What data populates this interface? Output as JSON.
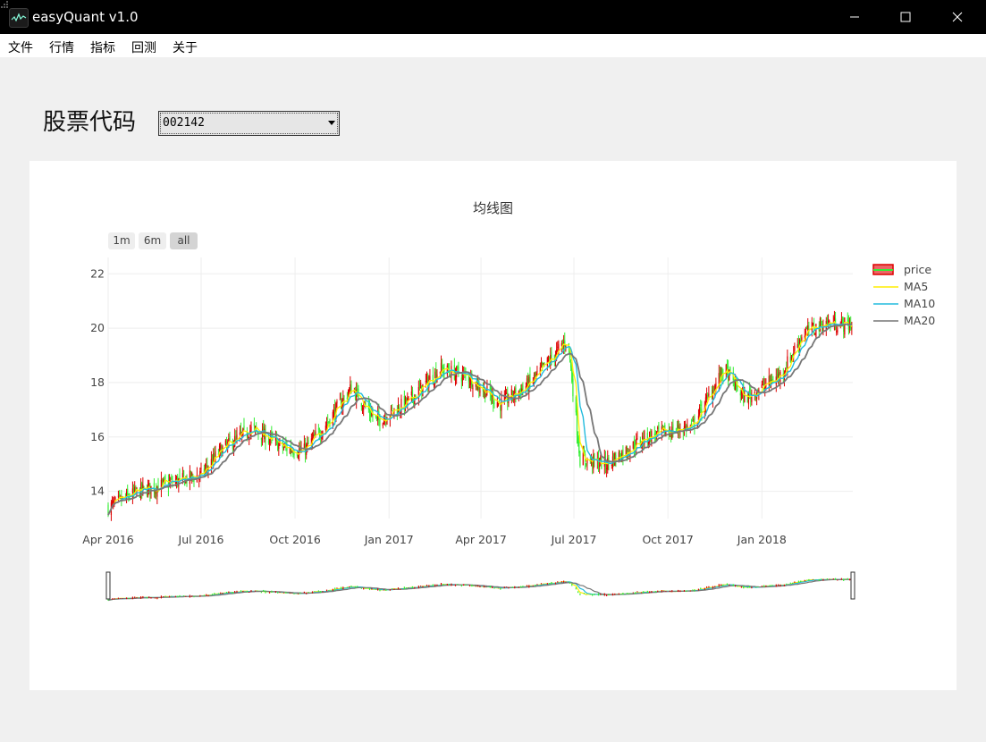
{
  "window": {
    "title": "easyQuant v1.0"
  },
  "menu": {
    "items": [
      "文件",
      "行情",
      "指标",
      "回测",
      "关于"
    ]
  },
  "stock": {
    "label": "股票代码",
    "selected": "002142"
  },
  "range_buttons": [
    "1m",
    "6m",
    "all"
  ],
  "colors": {
    "up": "#dd0000",
    "down": "#33ee33",
    "ma5": "#ffee00",
    "ma10": "#22bbdd",
    "ma20": "#777777"
  },
  "chart_data": {
    "type": "candlestick",
    "title": "均线图",
    "x_ticks": [
      "Apr 2016",
      "Jul 2016",
      "Oct 2016",
      "Jan 2017",
      "Apr 2017",
      "Jul 2017",
      "Oct 2017",
      "Jan 2018"
    ],
    "y_ticks": [
      "14",
      "16",
      "18",
      "20",
      "22"
    ],
    "ylim": [
      13.0,
      22.6
    ],
    "xlim": [
      "2016-04-01",
      "2018-03-31"
    ],
    "grid": true,
    "legend": {
      "placement": "top-right",
      "entries": [
        "price",
        "MA5",
        "MA10",
        "MA20"
      ]
    },
    "rangeslider": true,
    "close_anchors": [
      [
        "2016-04-01",
        13.4
      ],
      [
        "2016-05-01",
        14.0
      ],
      [
        "2016-06-01",
        14.3
      ],
      [
        "2016-07-01",
        14.6
      ],
      [
        "2016-07-20",
        15.5
      ],
      [
        "2016-08-20",
        16.3
      ],
      [
        "2016-09-20",
        15.6
      ],
      [
        "2016-10-10",
        15.5
      ],
      [
        "2016-11-01",
        16.5
      ],
      [
        "2016-11-25",
        17.8
      ],
      [
        "2016-12-20",
        16.6
      ],
      [
        "2017-01-20",
        17.3
      ],
      [
        "2017-02-20",
        18.5
      ],
      [
        "2017-03-20",
        18.2
      ],
      [
        "2017-04-20",
        17.2
      ],
      [
        "2017-05-20",
        18.0
      ],
      [
        "2017-06-25",
        19.6
      ],
      [
        "2017-07-07",
        15.2
      ],
      [
        "2017-08-01",
        15.0
      ],
      [
        "2017-09-10",
        16.0
      ],
      [
        "2017-10-25",
        16.4
      ],
      [
        "2017-11-25",
        18.5
      ],
      [
        "2017-12-15",
        17.4
      ],
      [
        "2018-01-20",
        18.3
      ],
      [
        "2018-02-10",
        19.8
      ],
      [
        "2018-03-05",
        20.2
      ],
      [
        "2018-03-31",
        20.1
      ]
    ]
  }
}
